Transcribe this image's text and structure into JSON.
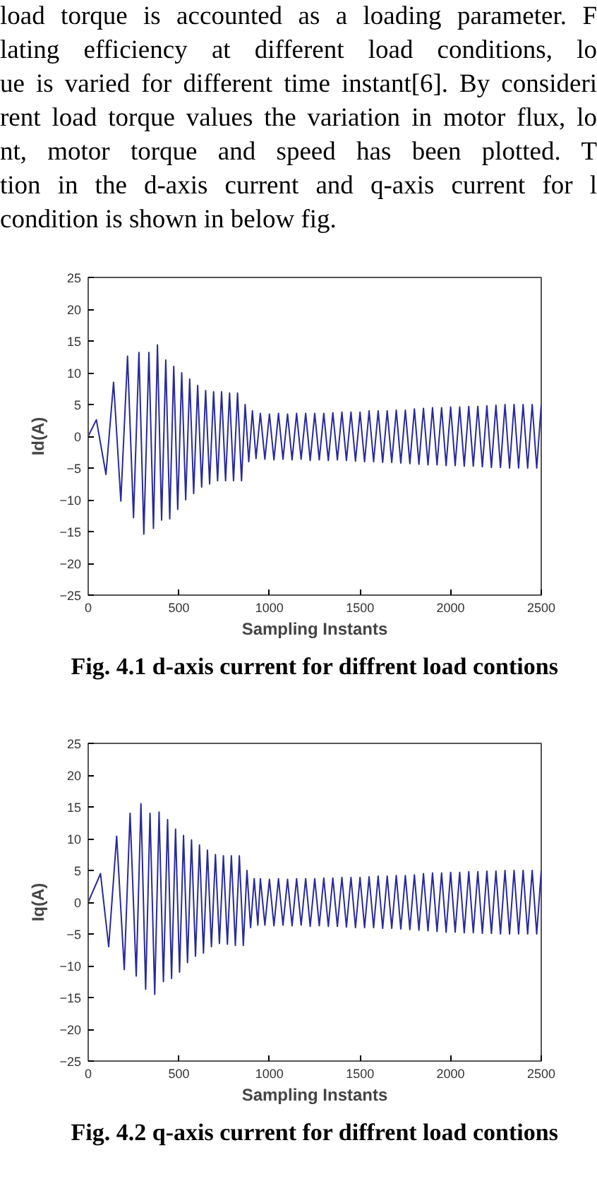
{
  "chart_data": [
    {
      "type": "line",
      "title": "Fig. 4.1 d-axis current for diffrent load contions",
      "xlabel": "Sampling Instants",
      "ylabel": "Id(A)",
      "annotations": [
        "load torque is accounted as a loading parameter. F",
        "lating efficiency at different load conditions, lo",
        "ue is varied for different time instant[6].  By consideri",
        "rent load torque values the variation in motor flux,  lo",
        "nt, motor torque and speed has been plotted. T",
        "tion in the d-axis current and q-axis current for l",
        "condition is shown in below fig."
      ],
      "xlim": [
        0,
        2500
      ],
      "ylim": [
        -25,
        25
      ],
      "xticks": [
        0,
        500,
        1000,
        1500,
        2000,
        2500
      ],
      "yticks": [
        -25,
        -20,
        -15,
        -10,
        -5,
        0,
        5,
        10,
        15,
        20,
        25
      ],
      "grid": false,
      "marker": "none",
      "line_style": "solid",
      "series": [
        {
          "color": "#2a2a9c",
          "x": [
            0,
            45,
            98,
            140,
            180,
            217,
            250,
            280,
            307,
            335,
            360,
            382,
            405,
            428,
            450,
            472,
            494,
            516,
            538,
            560,
            582,
            604,
            626,
            648,
            670,
            692,
            714,
            736,
            758,
            780,
            802,
            824,
            846,
            866,
            886,
            906,
            926,
            950,
            975,
            1000,
            1025,
            1050,
            1075,
            1100,
            1125,
            1150,
            1175,
            1200,
            1225,
            1250,
            1275,
            1300,
            1325,
            1350,
            1375,
            1400,
            1425,
            1450,
            1475,
            1500,
            1525,
            1550,
            1575,
            1600,
            1625,
            1650,
            1675,
            1700,
            1725,
            1750,
            1775,
            1800,
            1825,
            1850,
            1875,
            1900,
            1925,
            1950,
            1975,
            2000,
            2025,
            2050,
            2075,
            2100,
            2125,
            2150,
            2175,
            2200,
            2225,
            2250,
            2275,
            2300,
            2325,
            2350,
            2375,
            2400,
            2425,
            2450,
            2475,
            2500
          ],
          "values": [
            0,
            2.6,
            -6,
            8.5,
            -10.2,
            12.6,
            -12.8,
            13.2,
            -15.4,
            13.2,
            -14.5,
            14.4,
            -13.2,
            12,
            -13,
            11,
            -11.5,
            10,
            -10,
            9,
            -9,
            8,
            -8,
            7.2,
            -7.5,
            7,
            -7,
            7,
            -7,
            6.8,
            -7,
            6.8,
            -7,
            5,
            -4,
            4,
            -3.5,
            3.6,
            -3.6,
            3.5,
            -3.7,
            3.6,
            -3.6,
            3.5,
            -3.7,
            3.6,
            -3.6,
            3.6,
            -3.8,
            3.6,
            -3.7,
            3.6,
            -3.8,
            3.7,
            -3.7,
            3.8,
            -3.8,
            3.8,
            -3.9,
            3.8,
            -4,
            4,
            -4,
            4,
            -4.1,
            4,
            -4.1,
            4.1,
            -4.2,
            4.1,
            -4.3,
            4.3,
            -4.4,
            4.4,
            -4.5,
            4.5,
            -4.5,
            4.5,
            -4.6,
            4.6,
            -4.6,
            4.6,
            -4.7,
            4.7,
            -4.7,
            4.7,
            -4.8,
            4.8,
            -4.9,
            4.9,
            -4.9,
            5,
            -5,
            5,
            -5,
            5,
            -5,
            5,
            -5,
            5
          ]
        }
      ]
    },
    {
      "type": "line",
      "title": "Fig. 4.2 q-axis current for diffrent load contions",
      "xlabel": "Sampling Instants",
      "ylabel": "Iq(A)",
      "xlim": [
        0,
        2500
      ],
      "ylim": [
        -25,
        25
      ],
      "xticks": [
        0,
        500,
        1000,
        1500,
        2000,
        2500
      ],
      "yticks": [
        -25,
        -20,
        -15,
        -10,
        -5,
        0,
        5,
        10,
        15,
        20,
        25
      ],
      "grid": false,
      "marker": "none",
      "line_style": "solid",
      "series": [
        {
          "color": "#2a2a9c",
          "x": [
            0,
            68,
            113,
            157,
            199,
            231,
            265,
            291,
            317,
            341,
            367,
            391,
            415,
            438,
            460,
            482,
            504,
            526,
            548,
            570,
            592,
            614,
            636,
            658,
            680,
            702,
            724,
            746,
            768,
            790,
            812,
            834,
            856,
            876,
            896,
            916,
            936,
            950,
            975,
            1000,
            1025,
            1050,
            1075,
            1100,
            1125,
            1150,
            1175,
            1200,
            1225,
            1250,
            1275,
            1300,
            1325,
            1350,
            1375,
            1400,
            1425,
            1450,
            1475,
            1500,
            1525,
            1550,
            1575,
            1600,
            1625,
            1650,
            1675,
            1700,
            1725,
            1750,
            1775,
            1800,
            1825,
            1850,
            1875,
            1900,
            1925,
            1950,
            1975,
            2000,
            2025,
            2050,
            2075,
            2100,
            2125,
            2150,
            2175,
            2200,
            2225,
            2250,
            2275,
            2300,
            2325,
            2350,
            2375,
            2400,
            2425,
            2450,
            2475,
            2500
          ],
          "values": [
            0,
            4.5,
            -7,
            10.4,
            -10.6,
            14,
            -11.6,
            15.5,
            -13.7,
            14,
            -14.5,
            14.2,
            -12.5,
            13,
            -12,
            11.5,
            -11,
            10.5,
            -9.5,
            9.8,
            -8.5,
            9,
            -8,
            8.2,
            -7,
            7.5,
            -6.5,
            7.3,
            -6.6,
            7.3,
            -6.8,
            7.3,
            -6.8,
            5,
            -4,
            3.7,
            -3.6,
            3.7,
            -3.6,
            3.6,
            -3.7,
            3.7,
            -3.6,
            3.6,
            -3.7,
            3.7,
            -3.6,
            3.7,
            -3.8,
            3.7,
            -3.7,
            3.8,
            -3.8,
            3.8,
            -3.8,
            3.9,
            -3.9,
            3.9,
            -4,
            3.9,
            -4,
            4,
            -4,
            4.1,
            -4.1,
            4.1,
            -4.1,
            4.2,
            -4.2,
            4.2,
            -4.3,
            4.3,
            -4.4,
            4.5,
            -4.5,
            4.6,
            -4.6,
            4.6,
            -4.7,
            4.7,
            -4.7,
            4.7,
            -4.8,
            4.8,
            -4.8,
            4.8,
            -4.9,
            4.9,
            -4.9,
            4.9,
            -5,
            5,
            -5,
            5,
            -5,
            5,
            -5,
            5,
            -5,
            5
          ]
        }
      ]
    }
  ]
}
